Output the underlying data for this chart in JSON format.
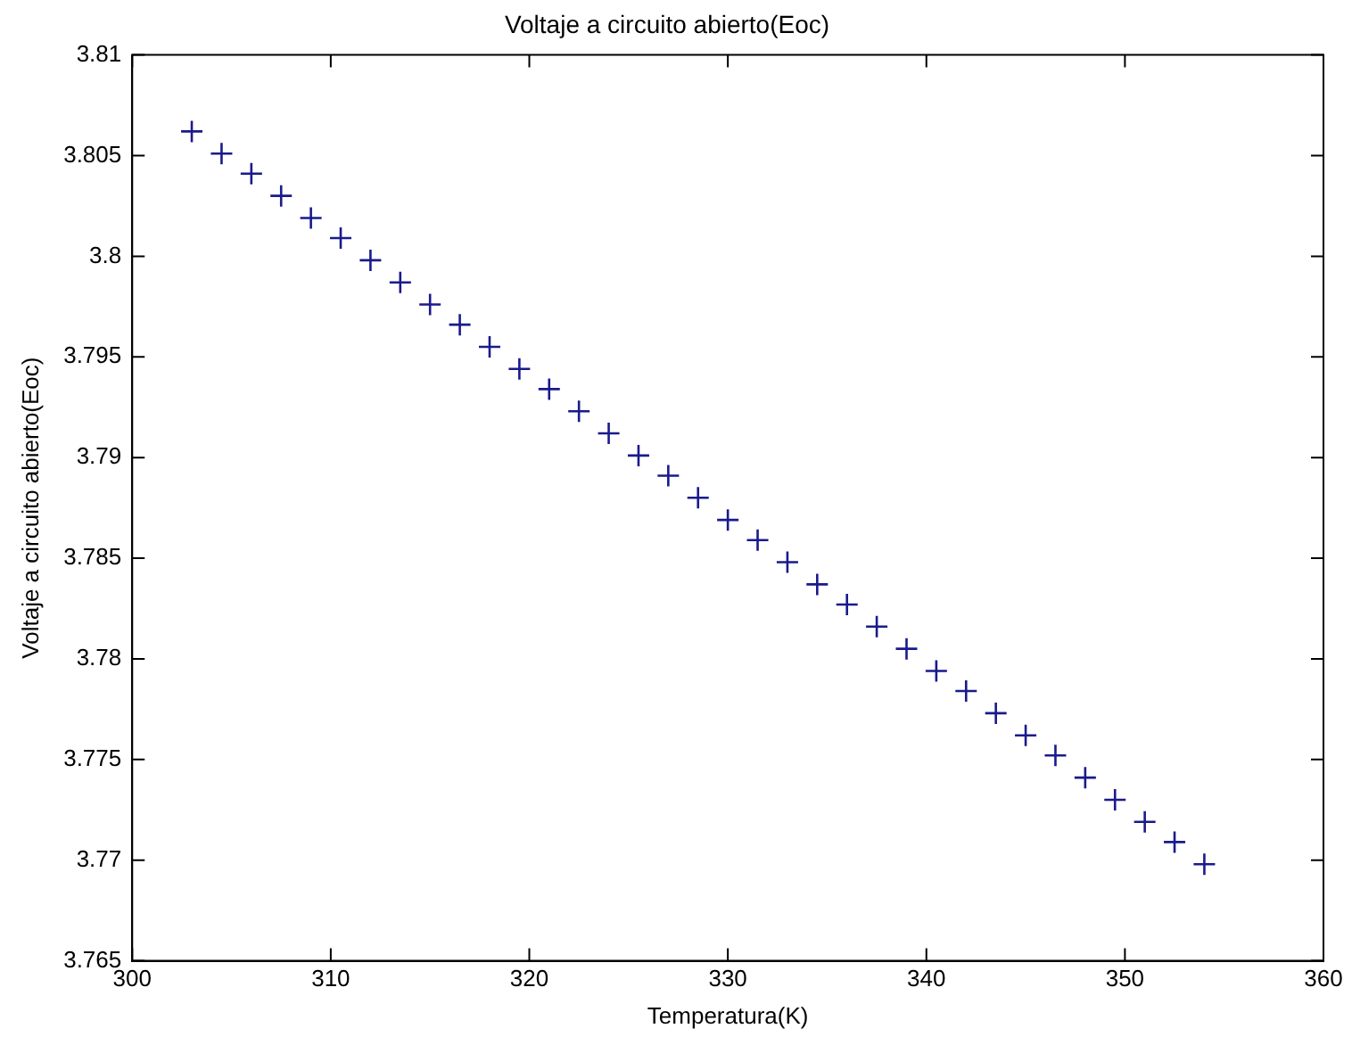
{
  "chart_data": {
    "type": "scatter",
    "title": "Voltaje a circuito abierto(Eoc)",
    "xlabel": "Temperatura(K)",
    "ylabel": "Voltaje a circuito abierto(Eoc)",
    "x": [
      303,
      304.5,
      306,
      307.5,
      309,
      310.5,
      312,
      313.5,
      315,
      316.5,
      318,
      319.5,
      321,
      322.5,
      324,
      325.5,
      327,
      328.5,
      330,
      331.5,
      333,
      334.5,
      336,
      337.5,
      339,
      340.5,
      342,
      343.5,
      345,
      346.5,
      348,
      349.5,
      351,
      352.5,
      354
    ],
    "values": [
      3.8062,
      3.8051,
      3.8041,
      3.803,
      3.8019,
      3.8009,
      3.7998,
      3.7987,
      3.7976,
      3.7966,
      3.7955,
      3.7944,
      3.7934,
      3.7923,
      3.7912,
      3.7901,
      3.7891,
      3.788,
      3.7869,
      3.7859,
      3.7848,
      3.7837,
      3.7827,
      3.7816,
      3.7805,
      3.7794,
      3.7784,
      3.7773,
      3.7762,
      3.7752,
      3.7741,
      3.773,
      3.7719,
      3.7709,
      3.7698
    ],
    "color": "#1a1a8c",
    "marker": "cross",
    "xlim": [
      300,
      360
    ],
    "xticks": [
      300,
      310,
      320,
      330,
      340,
      350,
      360
    ],
    "ylim": [
      3.765,
      3.81
    ],
    "yticks": [
      3.765,
      3.77,
      3.775,
      3.78,
      3.785,
      3.79,
      3.795,
      3.8,
      3.805,
      3.81
    ],
    "grid": false,
    "legend": false
  }
}
